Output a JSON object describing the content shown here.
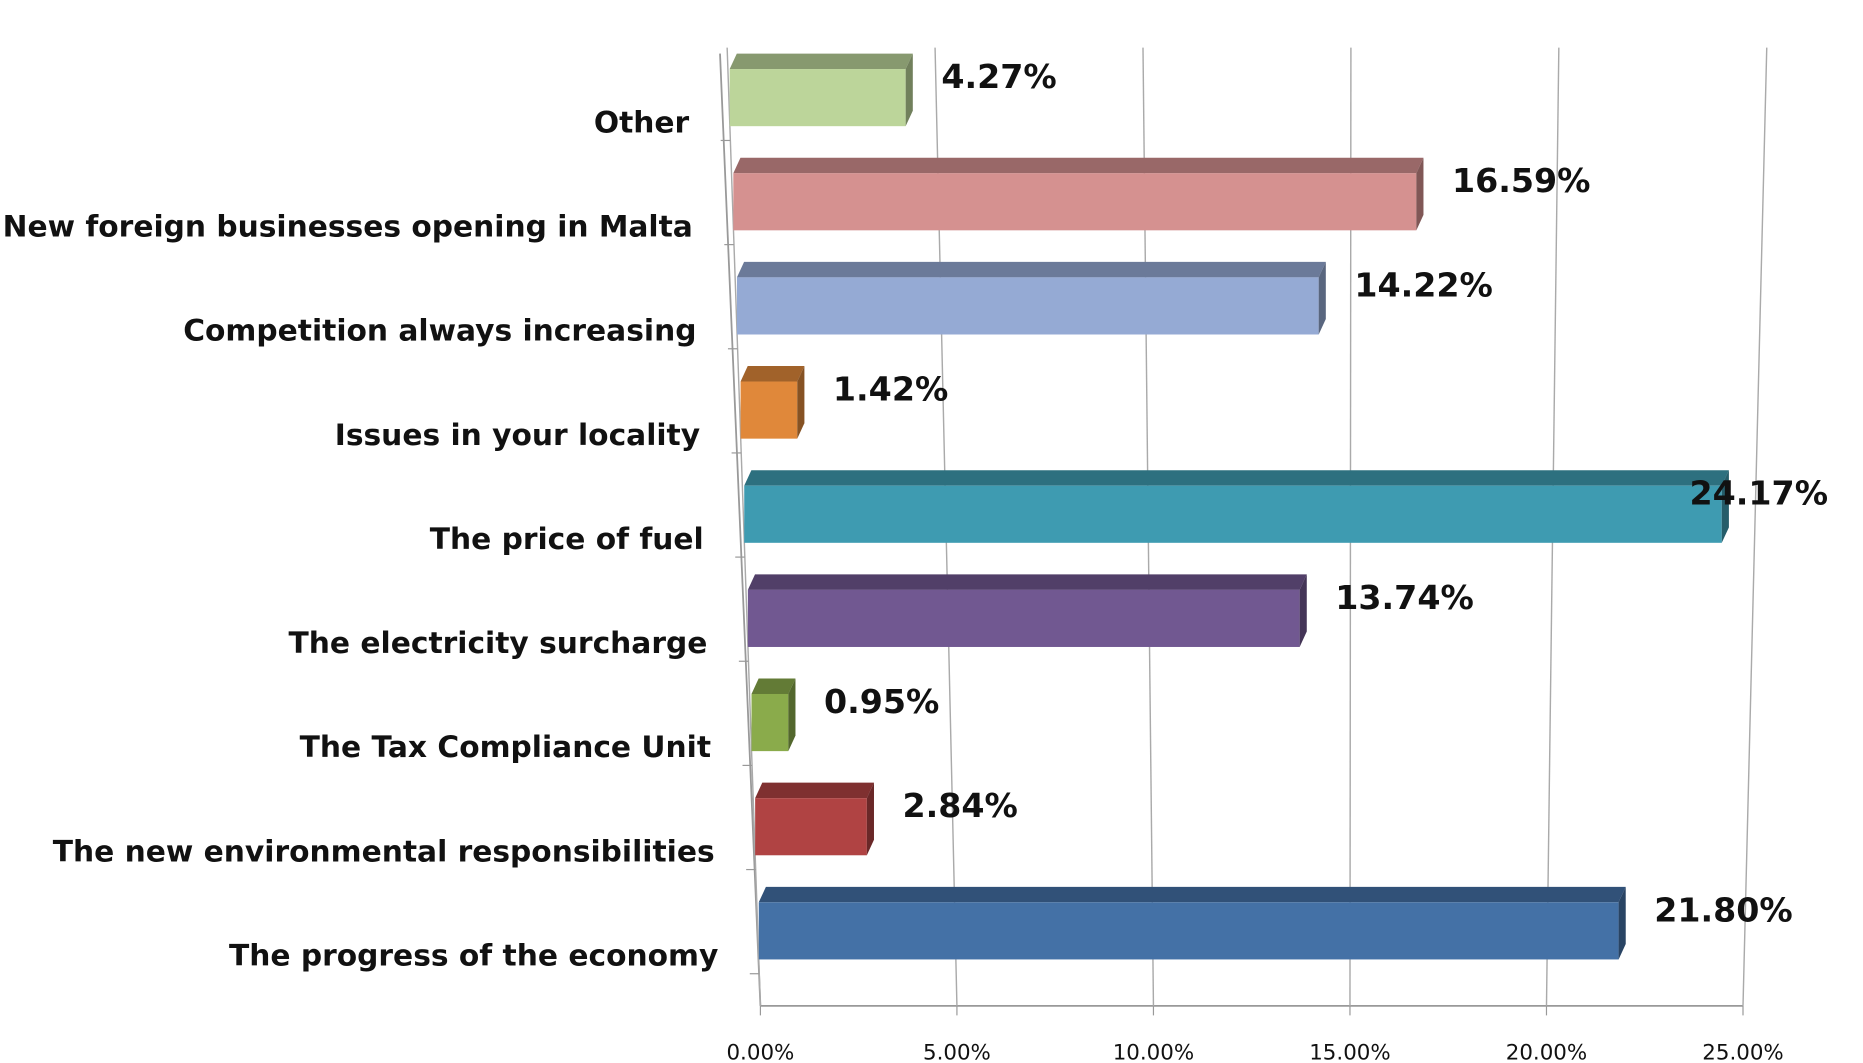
{
  "chart_data": {
    "type": "bar3d_horizontal",
    "categories": [
      "The progress of the economy",
      "The new environmental  responsibilities",
      "The Tax Compliance  Unit",
      "The electricity surcharge",
      "The price of fuel",
      "Issues in your locality",
      "Competition always increasing",
      "New foreign businesses opening in Malta",
      "Other"
    ],
    "values": [
      21.8,
      2.84,
      0.95,
      13.74,
      24.17,
      1.42,
      14.22,
      16.59,
      4.27
    ],
    "value_labels": [
      "21.80%",
      "2.84%",
      "0.95%",
      "13.74%",
      "24.17%",
      "1.42%",
      "14.22%",
      "16.59%",
      "4.27%"
    ],
    "colors": [
      "#4471a6",
      "#b04343",
      "#8aab4b",
      "#715891",
      "#3e9bb1",
      "#e0883a",
      "#95aad4",
      "#d59190",
      "#bcd59a"
    ],
    "xlim": [
      0,
      25
    ],
    "xticks": [
      {
        "value": 0,
        "label": "0.00%"
      },
      {
        "value": 5,
        "label": "5.00%"
      },
      {
        "value": 10,
        "label": "10.00%"
      },
      {
        "value": 15,
        "label": "15.00%"
      },
      {
        "value": 20,
        "label": "20.00%"
      },
      {
        "value": 25,
        "label": "25.00%"
      }
    ],
    "grid": true
  }
}
